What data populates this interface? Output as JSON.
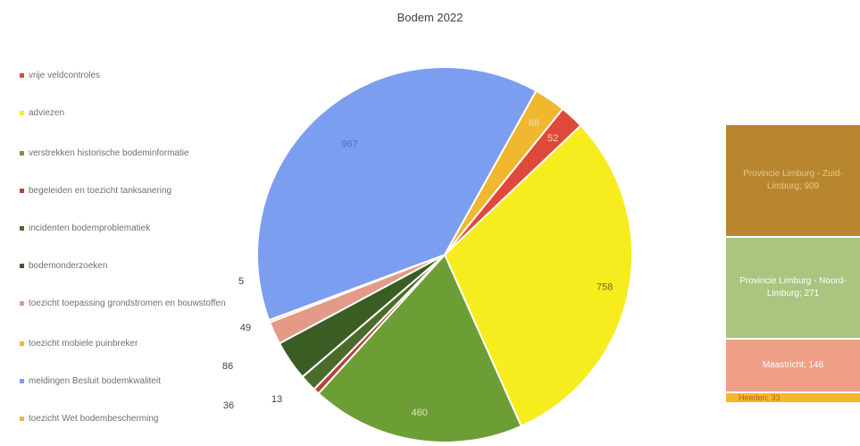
{
  "chart_data": [
    {
      "type": "pie",
      "title": "Bodem 2022",
      "legend_position": "left",
      "slices": [
        {
          "label": "vrije veldcontroles",
          "value": 52,
          "color": "#e0483a"
        },
        {
          "label": "adviezen",
          "value": 758,
          "color": "#f7ec1e"
        },
        {
          "label": "verstrekken historische bodeminformatie",
          "value": 460,
          "color": "#6d9e35"
        },
        {
          "label": "begeleiden en toezicht tanksanering",
          "value": 13,
          "color": "#b3443a"
        },
        {
          "label": "incidenten bodemproblematiek",
          "value": 36,
          "color": "#4b6b2a"
        },
        {
          "label": "bodemonderzoeken",
          "value": 86,
          "color": "#3a5d23"
        },
        {
          "label": "toezicht toepassing grondstromen en bouwstoffen",
          "value": 49,
          "color": "#e39a86"
        },
        {
          "label": "toezicht mobiele puinbreker",
          "value": 5,
          "color": "#f5b82c"
        },
        {
          "label": "meldingen Besluit bodemkwaliteit",
          "value": 967,
          "color": "#7c9ef0"
        },
        {
          "label": "toezicht Wet bodembescherming",
          "value": 68,
          "color": "#f0b72f"
        }
      ],
      "data_labels": [
        {
          "text": "967",
          "slice": 8
        },
        {
          "text": "758",
          "slice": 1
        },
        {
          "text": "460",
          "slice": 2
        },
        {
          "text": "68",
          "slice": 9
        },
        {
          "text": "52",
          "slice": 0
        },
        {
          "text": "5",
          "slice": 7
        },
        {
          "text": "49",
          "slice": 6
        },
        {
          "text": "86",
          "slice": 5
        },
        {
          "text": "13",
          "slice": 3
        },
        {
          "text": "36",
          "slice": 4
        }
      ]
    },
    {
      "type": "bar",
      "stacked": true,
      "segments": [
        {
          "label": "Provincie Limburg - Zuid-Limburg",
          "value": 909,
          "text": "Provincie Limburg - Zuid-Limburg; 909",
          "color": "#b8862f",
          "text_color": "#e8c98a"
        },
        {
          "label": "Provincie Limburg - Noord-Limburg",
          "value": 271,
          "text": "Provincie Limburg - Noord-Limburg; 271",
          "color": "#a9c57f",
          "text_color": "#ffffff"
        },
        {
          "label": "Maastricht",
          "value": 146,
          "text": "Maastricht; 146",
          "color": "#ee9f86",
          "text_color": "#ffffff"
        },
        {
          "label": "Heerlen",
          "value": 33,
          "text": "Heerlen; 33",
          "color": "#f4b82c",
          "text_color": "#c45a1a"
        }
      ]
    }
  ]
}
